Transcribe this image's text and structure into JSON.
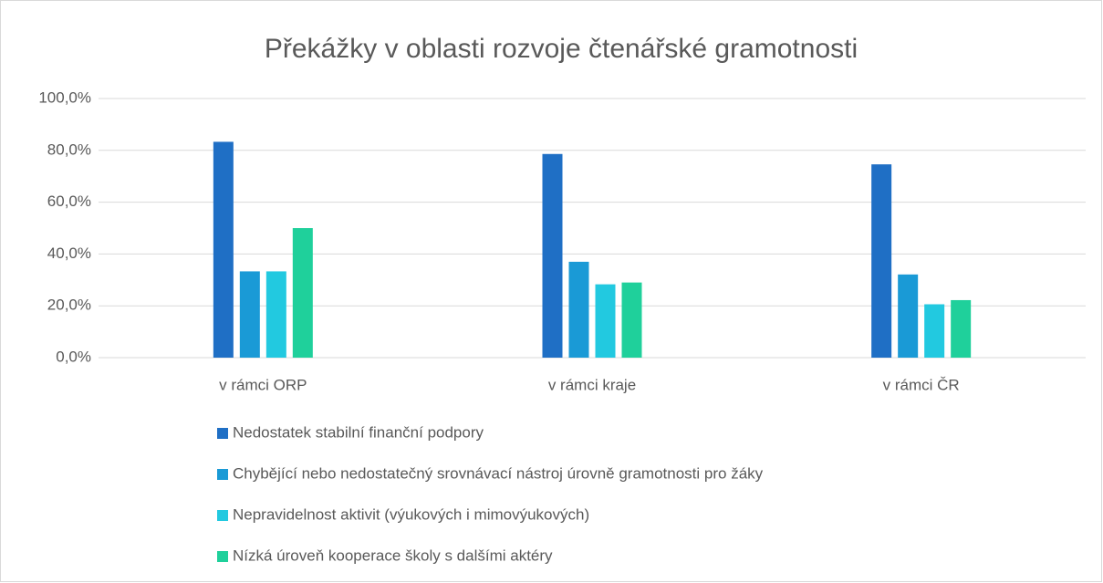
{
  "chart_data": {
    "type": "bar",
    "title": "Překážky v oblasti rozvoje čtenářské gramotnosti",
    "categories": [
      "v rámci ORP",
      "v rámci kraje",
      "v rámci ČR"
    ],
    "series": [
      {
        "name": "Nedostatek stabilní finanční podpory",
        "color": "#1f6fc5",
        "values": [
          83.3,
          78.6,
          74.6
        ]
      },
      {
        "name": "Chybějící nebo nedostatečný srovnávací nástroj úrovně gramotnosti pro žáky",
        "color": "#1a9ad6",
        "values": [
          33.3,
          37.0,
          32.1
        ]
      },
      {
        "name": "Nepravidelnost aktivit (výukových i mimovýukových)",
        "color": "#22c9e0",
        "values": [
          33.3,
          28.3,
          20.6
        ]
      },
      {
        "name": "Nízká úroveň kooperace školy s dalšími aktéry",
        "color": "#1fd09b",
        "values": [
          50.0,
          29.0,
          22.2
        ]
      }
    ],
    "ylim": [
      0,
      100
    ],
    "yticks": [
      {
        "value": 0,
        "label": "0,0%"
      },
      {
        "value": 20,
        "label": "20,0%"
      },
      {
        "value": 40,
        "label": "40,0%"
      },
      {
        "value": 60,
        "label": "60,0%"
      },
      {
        "value": 80,
        "label": "80,0%"
      },
      {
        "value": 100,
        "label": "100,0%"
      }
    ],
    "grid": true
  }
}
